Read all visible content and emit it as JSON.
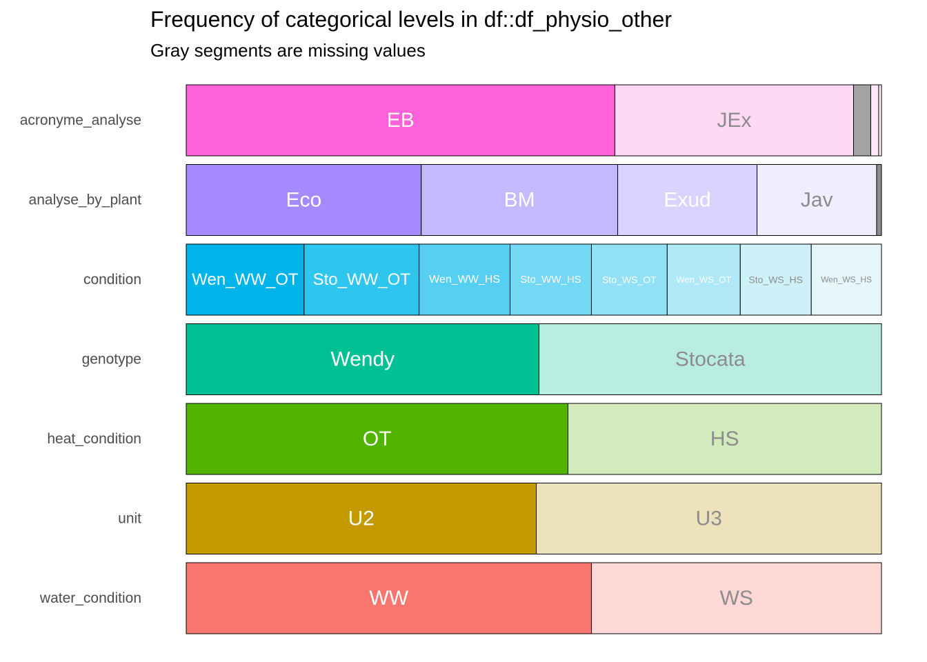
{
  "title": "Frequency of categorical levels in df::df_physio_other",
  "subtitle": "Gray segments are missing values",
  "chart_data": {
    "type": "bar",
    "orientation": "horizontal",
    "stacked": true,
    "normalized": true,
    "xlim": [
      0,
      1
    ],
    "grid": false,
    "legend": "none",
    "missing_color": "#a3a3a3",
    "rows": [
      {
        "name": "acronyme_analyse",
        "segments": [
          {
            "label": "EB",
            "proportion": 0.6165,
            "color": "#ff61d8",
            "text_color": "#ffffff"
          },
          {
            "label": "JEx",
            "proportion": 0.3433,
            "color": "#ffd8f3",
            "text_color": "#8c8c8c"
          },
          {
            "label": "",
            "proportion": 0.0248,
            "color": "#a3a3a3",
            "text_color": "#ffffff"
          },
          {
            "label": "",
            "proportion": 0.0114,
            "color": "#ffe6f8",
            "text_color": "#8c8c8c"
          },
          {
            "label": "",
            "proportion": 0.004,
            "color": "#fff2fb",
            "text_color": "#8c8c8c"
          }
        ]
      },
      {
        "name": "analyse_by_plant",
        "segments": [
          {
            "label": "Eco",
            "proportion": 0.338,
            "color": "#a58aff",
            "text_color": "#ffffff"
          },
          {
            "label": "BM",
            "proportion": 0.2826,
            "color": "#c4b8ff",
            "text_color": "#ffffff"
          },
          {
            "label": "Exud",
            "proportion": 0.2004,
            "color": "#dcd2ff",
            "text_color": "#ffffff"
          },
          {
            "label": "Jav",
            "proportion": 0.172,
            "color": "#f0edff",
            "text_color": "#8c8c8c"
          },
          {
            "label": "",
            "proportion": 0.007,
            "color": "#8c8c8c",
            "text_color": "#ffffff"
          }
        ]
      },
      {
        "name": "condition",
        "segments": [
          {
            "label": "Wen_WW_OT",
            "proportion": 0.1695,
            "color": "#00b4e9",
            "text_color": "#ffffff",
            "font_size": 24
          },
          {
            "label": "Sto_WW_OT",
            "proportion": 0.1655,
            "color": "#2ec5ee",
            "text_color": "#ffffff",
            "font_size": 24
          },
          {
            "label": "Wen_WW_HS",
            "proportion": 0.1308,
            "color": "#56cff2",
            "text_color": "#ffffff",
            "font_size": 16
          },
          {
            "label": "Sto_WW_HS",
            "proportion": 0.117,
            "color": "#73d8f4",
            "text_color": "#ffffff",
            "font_size": 15
          },
          {
            "label": "Sto_WS_OT",
            "proportion": 0.109,
            "color": "#91e0f6",
            "text_color": "#ffffff",
            "font_size": 14
          },
          {
            "label": "Wen_WS_OT",
            "proportion": 0.1051,
            "color": "#afe9f8",
            "text_color": "#ffffff",
            "font_size": 13
          },
          {
            "label": "Sto_WS_HS",
            "proportion": 0.1021,
            "color": "#cdf0f9",
            "text_color": "#8c8c8c",
            "font_size": 14
          },
          {
            "label": "Wen_WS_HS",
            "proportion": 0.101,
            "color": "#e6f7fb",
            "text_color": "#8c8c8c",
            "font_size": 12
          }
        ]
      },
      {
        "name": "genotype",
        "segments": [
          {
            "label": "Wendy",
            "proportion": 0.5074,
            "color": "#00c094",
            "text_color": "#ffffff"
          },
          {
            "label": "Stocata",
            "proportion": 0.4926,
            "color": "#baede2",
            "text_color": "#8c8c8c"
          }
        ]
      },
      {
        "name": "heat_condition",
        "segments": [
          {
            "label": "OT",
            "proportion": 0.5491,
            "color": "#53b400",
            "text_color": "#ffffff"
          },
          {
            "label": "HS",
            "proportion": 0.4509,
            "color": "#d2eabc",
            "text_color": "#8c8c8c"
          }
        ]
      },
      {
        "name": "unit",
        "segments": [
          {
            "label": "U2",
            "proportion": 0.5035,
            "color": "#c49a00",
            "text_color": "#ffffff"
          },
          {
            "label": "U3",
            "proportion": 0.4965,
            "color": "#ede2bc",
            "text_color": "#8c8c8c"
          }
        ]
      },
      {
        "name": "water_condition",
        "segments": [
          {
            "label": "WW",
            "proportion": 0.5828,
            "color": "#f8766d",
            "text_color": "#ffffff"
          },
          {
            "label": "WS",
            "proportion": 0.4172,
            "color": "#fdd8d5",
            "text_color": "#8c8c8c"
          }
        ]
      }
    ]
  }
}
